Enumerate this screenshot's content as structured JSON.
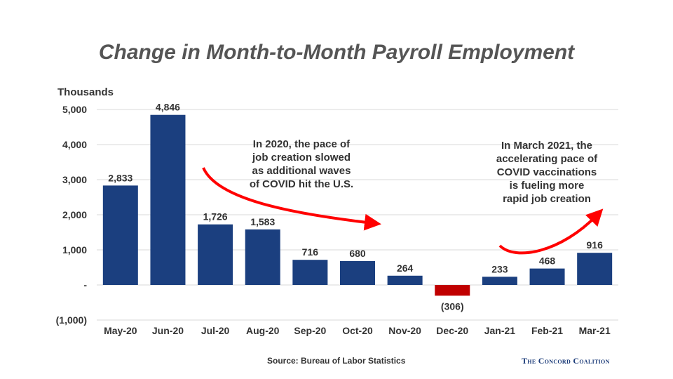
{
  "title": "Change in Month-to-Month Payroll Employment",
  "units_label": "Thousands",
  "source": "Source: Bureau of Labor Statistics",
  "brand": "The Concord Coalition",
  "annotations": [
    {
      "lines": [
        "In 2020, the pace of",
        "job creation slowed",
        "as additional waves",
        "of COVID hit the U.S."
      ]
    },
    {
      "lines": [
        "In March 2021, the",
        "accelerating pace of",
        "COVID vaccinations",
        "is fueling more",
        "rapid job creation"
      ]
    }
  ],
  "colors": {
    "positive": "#1b3f7f",
    "negative": "#c00000",
    "arrow": "#ff0000",
    "grid": "#d9d9d9"
  },
  "chart_data": {
    "type": "bar",
    "title": "Change in Month-to-Month Payroll Employment",
    "ylabel": "Thousands",
    "xlabel": "",
    "categories": [
      "May-20",
      "Jun-20",
      "Jul-20",
      "Aug-20",
      "Sep-20",
      "Oct-20",
      "Nov-20",
      "Dec-20",
      "Jan-21",
      "Feb-21",
      "Mar-21"
    ],
    "values": [
      2833,
      4846,
      1726,
      1583,
      716,
      680,
      264,
      -306,
      233,
      468,
      916
    ],
    "value_labels": [
      "2,833",
      "4,846",
      "1,726",
      "1,583",
      "716",
      "680",
      "264",
      "(306)",
      "233",
      "468",
      "916"
    ],
    "ylim": [
      -1000,
      5000
    ],
    "yticks": [
      5000,
      4000,
      3000,
      2000,
      1000,
      0,
      -1000
    ],
    "ytick_labels": [
      "5,000",
      "4,000",
      "3,000",
      "2,000",
      "1,000",
      "-",
      "(1,000)"
    ],
    "grid": true,
    "legend": "none"
  }
}
